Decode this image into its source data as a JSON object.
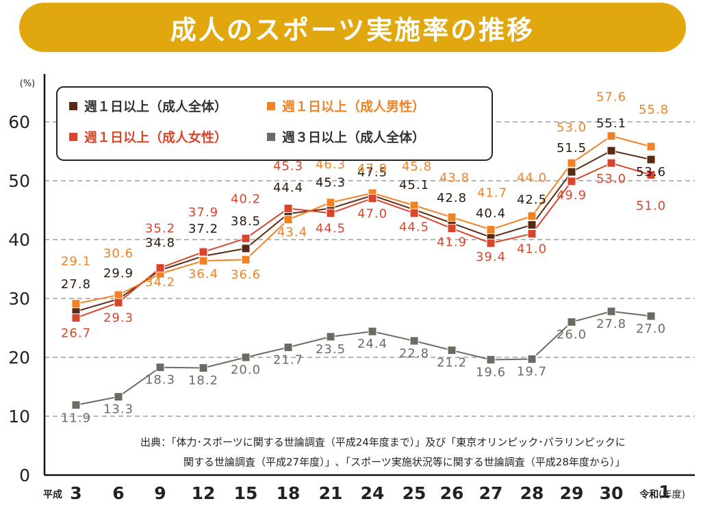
{
  "title": "成人のスポーツ実施率の推移",
  "chart_data": {
    "type": "line",
    "ylabel": "(%)",
    "ylim": [
      0,
      65
    ],
    "yticks": [
      0,
      10,
      20,
      30,
      40,
      50,
      60
    ],
    "grid": true,
    "legend_position": "top-left",
    "x_prefix": "平成",
    "x_suffix": "(年度)",
    "categories": [
      "3",
      "6",
      "9",
      "12",
      "15",
      "18",
      "21",
      "24",
      "25",
      "26",
      "27",
      "28",
      "29",
      "30",
      "令和1"
    ],
    "series": [
      {
        "name": "週１日以上（成人全体）",
        "color": "#5a2a12",
        "values": [
          27.8,
          29.9,
          34.8,
          37.2,
          38.5,
          44.4,
          45.3,
          47.5,
          45.1,
          42.8,
          40.4,
          42.5,
          51.5,
          55.1,
          53.6
        ]
      },
      {
        "name": "週１日以上（成人男性）",
        "color": "#f08224",
        "values": [
          29.1,
          30.6,
          34.2,
          36.4,
          36.6,
          43.4,
          46.3,
          47.9,
          45.8,
          43.8,
          41.7,
          44.0,
          53.0,
          57.6,
          55.8
        ]
      },
      {
        "name": "週１日以上（成人女性）",
        "color": "#d9452a",
        "values": [
          26.7,
          29.3,
          35.2,
          37.9,
          40.2,
          45.3,
          44.5,
          47.0,
          44.5,
          41.9,
          39.4,
          41.0,
          49.9,
          53.0,
          51.0
        ]
      },
      {
        "name": "週３日以上（成人全体）",
        "color": "#6b6b63",
        "values": [
          11.9,
          13.3,
          18.3,
          18.2,
          20.0,
          21.7,
          23.5,
          24.4,
          22.8,
          21.2,
          19.6,
          19.7,
          26.0,
          27.8,
          27.0
        ]
      }
    ]
  },
  "source_lines": [
    "出典：「体力･スポーツに関する世論調査（平成24年度まで）」及び「東京オリンピック･パラリンピックに",
    "関する世論調査（平成27年度）」､「スポーツ実施状況等に関する世論調査（平成28年度から）」"
  ]
}
